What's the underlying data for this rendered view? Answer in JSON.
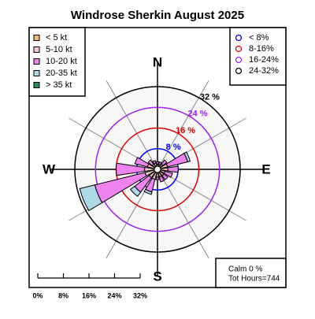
{
  "chart_data": {
    "type": "windrose",
    "title": "Windrose  Sherkin August 2025",
    "compass": [
      "N",
      "E",
      "S",
      "W"
    ],
    "rlim": [
      0,
      32
    ],
    "rticks": [
      {
        "value": 8,
        "label": "8 %"
      },
      {
        "value": 16,
        "label": "16 %"
      },
      {
        "value": 24,
        "label": "24 %"
      },
      {
        "value": 32,
        "label": "32 %"
      }
    ],
    "ring_colors": [
      "#0000ff",
      "#e00000",
      "#a020f0",
      "#000000"
    ],
    "ring_legend": [
      "< 8%",
      "8-16%",
      "16-24%",
      "24-32%"
    ],
    "series": [
      {
        "name": "< 5  kt",
        "color": "#f5b87a",
        "values": [
          0.5,
          0.5,
          0.5,
          1,
          1,
          1,
          1,
          1,
          1,
          1,
          1,
          1,
          1,
          1,
          0.5,
          0.5
        ]
      },
      {
        "name": "5-10 kt",
        "color": "#f6c6c6",
        "values": [
          1.5,
          1.5,
          2,
          3,
          3,
          2,
          2,
          2,
          2,
          3,
          3,
          4,
          4,
          3,
          2,
          2
        ]
      },
      {
        "name": "10-20 kt",
        "color": "#ee82ee",
        "values": [
          1,
          1,
          2,
          8,
          4,
          3,
          2,
          2,
          1,
          5,
          7,
          20,
          11,
          5,
          2,
          1
        ]
      },
      {
        "name": "20-35 kt",
        "color": "#add8e6",
        "values": [
          0,
          0,
          0,
          1,
          0,
          0,
          0,
          0,
          0,
          1,
          2,
          6,
          0,
          0,
          0,
          0
        ]
      },
      {
        "name": "> 35 kt",
        "color": "#2e8b57",
        "values": [
          0,
          0,
          0,
          0,
          0,
          0,
          0,
          0,
          0,
          0,
          0,
          0,
          0,
          0,
          0,
          0
        ]
      }
    ],
    "calm": "Calm 0 %",
    "total": "Tot Hours=744",
    "scale_ticks": [
      {
        "value": 0,
        "label": "0%"
      },
      {
        "value": 8,
        "label": "8%"
      },
      {
        "value": 16,
        "label": "16%"
      },
      {
        "value": 24,
        "label": "24%"
      },
      {
        "value": 32,
        "label": "32%"
      }
    ]
  }
}
